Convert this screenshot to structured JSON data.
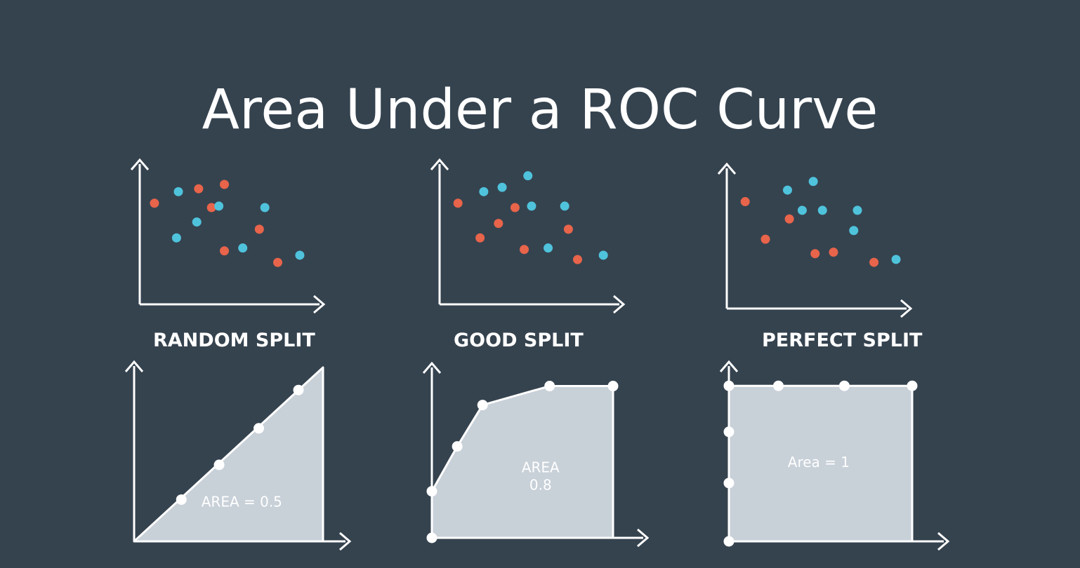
{
  "title": "Area Under a ROC Curve",
  "colors": {
    "background": "#35434f",
    "red_point": "#e8644a",
    "blue_point": "#4fc3dc",
    "area_fill": "#c8d0d8",
    "axis": "#ffffff",
    "roc_point": "#ffffff"
  },
  "panels": [
    {
      "label": "RANDOM SPLIT",
      "area_label": "AREA = 0.5",
      "scatter": {
        "red": [
          [
            0.08,
            0.7
          ],
          [
            0.32,
            0.8
          ],
          [
            0.46,
            0.83
          ],
          [
            0.39,
            0.67
          ],
          [
            0.65,
            0.52
          ],
          [
            0.46,
            0.37
          ],
          [
            0.75,
            0.29
          ]
        ],
        "blue": [
          [
            0.21,
            0.78
          ],
          [
            0.43,
            0.68
          ],
          [
            0.68,
            0.67
          ],
          [
            0.31,
            0.57
          ],
          [
            0.2,
            0.46
          ],
          [
            0.56,
            0.39
          ],
          [
            0.87,
            0.34
          ]
        ]
      },
      "roc_points": [
        [
          0.25,
          0.24
        ],
        [
          0.45,
          0.44
        ],
        [
          0.66,
          0.65
        ],
        [
          0.87,
          0.87
        ]
      ],
      "curve": [
        [
          0,
          0
        ],
        [
          1,
          1
        ],
        [
          1,
          0
        ]
      ]
    },
    {
      "label": "GOOD SPLIT",
      "area_label": "AREA\n0.8",
      "scatter": {
        "red": [
          [
            0.1,
            0.7
          ],
          [
            0.41,
            0.67
          ],
          [
            0.32,
            0.56
          ],
          [
            0.7,
            0.52
          ],
          [
            0.22,
            0.46
          ],
          [
            0.46,
            0.38
          ],
          [
            0.75,
            0.31
          ]
        ],
        "blue": [
          [
            0.24,
            0.78
          ],
          [
            0.34,
            0.81
          ],
          [
            0.48,
            0.89
          ],
          [
            0.5,
            0.68
          ],
          [
            0.68,
            0.68
          ],
          [
            0.59,
            0.39
          ],
          [
            0.89,
            0.34
          ]
        ]
      },
      "roc_points": [
        [
          0,
          0
        ],
        [
          0,
          0.27
        ],
        [
          0.14,
          0.53
        ],
        [
          0.28,
          0.77
        ],
        [
          0.65,
          0.88
        ],
        [
          1,
          0.88
        ]
      ],
      "curve": [
        [
          0,
          0
        ],
        [
          0,
          0.27
        ],
        [
          0.14,
          0.53
        ],
        [
          0.28,
          0.77
        ],
        [
          0.65,
          0.88
        ],
        [
          1,
          0.88
        ],
        [
          1,
          0
        ]
      ]
    },
    {
      "label": "PERFECT SPLIT",
      "area_label": "Area = 1",
      "scatter": {
        "red": [
          [
            0.1,
            0.74
          ],
          [
            0.21,
            0.48
          ],
          [
            0.34,
            0.62
          ],
          [
            0.48,
            0.38
          ],
          [
            0.58,
            0.39
          ],
          [
            0.8,
            0.32
          ]
        ],
        "blue": [
          [
            0.33,
            0.82
          ],
          [
            0.47,
            0.88
          ],
          [
            0.41,
            0.68
          ],
          [
            0.52,
            0.68
          ],
          [
            0.71,
            0.68
          ],
          [
            0.69,
            0.54
          ],
          [
            0.92,
            0.34
          ]
        ]
      },
      "roc_points": [
        [
          0,
          0
        ],
        [
          0,
          0.33
        ],
        [
          0,
          0.62
        ],
        [
          0,
          0.88
        ],
        [
          0.27,
          0.88
        ],
        [
          0.63,
          0.88
        ],
        [
          1,
          0.88
        ]
      ],
      "curve": [
        [
          0,
          0
        ],
        [
          0,
          0.88
        ],
        [
          1,
          0.88
        ],
        [
          1,
          0
        ]
      ]
    }
  ]
}
